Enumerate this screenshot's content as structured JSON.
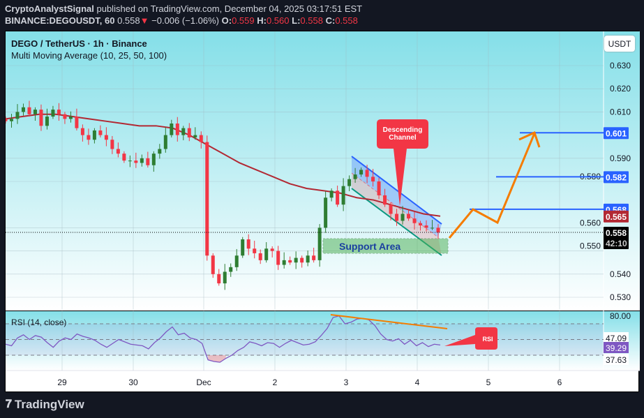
{
  "header": {
    "line1_author": "CryptoAnalystSignal",
    "line1_rest": "published on TradingView.com, December 04, 2025 03:17:51 EST",
    "symbol": "BINANCE:DEGOUSDT, 60",
    "last": "0.558",
    "change": "−0.006 (−1.06%)",
    "o_label": "O:",
    "o": "0.559",
    "h_label": "H:",
    "h": "0.560",
    "l_label": "L:",
    "l": "0.558",
    "c_label": "C:",
    "c": "0.558"
  },
  "legend": {
    "title": "DEGO / TetherUS · 1h · Binance",
    "indicator": "Multi Moving Average (10, 25, 50, 100)",
    "rsi": "RSI (14, close)"
  },
  "currency_button": "USDT",
  "brand": "TradingView",
  "colors": {
    "up": "#2e7d32",
    "down": "#f23645",
    "ma": "#b22833",
    "level": "#2962ff",
    "projection": "#f57c00",
    "rsi": "#7e57c2",
    "callout": "#f23645"
  },
  "chart_data": {
    "type": "candlestick",
    "price_ticks": [
      "0.630",
      "0.620",
      "0.610",
      "0.590",
      "0.580",
      "0.560",
      "0.550",
      "0.540",
      "0.530"
    ],
    "ylim": [
      0.527,
      0.64
    ],
    "x_ticks": [
      "29",
      "30",
      "Dec",
      "2",
      "3",
      "4",
      "5",
      "6"
    ],
    "closes": [
      0.606,
      0.607,
      0.61,
      0.612,
      0.609,
      0.611,
      0.604,
      0.608,
      0.611,
      0.609,
      0.607,
      0.608,
      0.603,
      0.6,
      0.598,
      0.602,
      0.6,
      0.598,
      0.594,
      0.592,
      0.589,
      0.589,
      0.588,
      0.59,
      0.587,
      0.592,
      0.594,
      0.6,
      0.605,
      0.6,
      0.603,
      0.599,
      0.6,
      0.597,
      0.548,
      0.54,
      0.536,
      0.541,
      0.543,
      0.548,
      0.555,
      0.551,
      0.549,
      0.546,
      0.551,
      0.55,
      0.544,
      0.546,
      0.545,
      0.547,
      0.545,
      0.548,
      0.546,
      0.56,
      0.573,
      0.576,
      0.57,
      0.578,
      0.581,
      0.583,
      0.585,
      0.582,
      0.58,
      0.574,
      0.57,
      0.566,
      0.563,
      0.566,
      0.564,
      0.562,
      0.561,
      0.56,
      0.56,
      0.558
    ],
    "ma100": [
      0.607,
      0.608,
      0.609,
      0.609,
      0.608,
      0.607,
      0.606,
      0.605,
      0.604,
      0.604,
      0.603,
      0.6,
      0.596,
      0.592,
      0.588,
      0.585,
      0.582,
      0.579,
      0.577,
      0.576,
      0.575,
      0.573,
      0.572,
      0.57,
      0.568,
      0.566,
      0.565
    ],
    "price_labels": [
      {
        "text": "0.601",
        "value": 0.601,
        "color": "#2962ff"
      },
      {
        "text": "0.582",
        "value": 0.582,
        "color": "#2962ff"
      },
      {
        "text": "0.568",
        "value": 0.568,
        "color": "#2962ff"
      },
      {
        "text": "0.565",
        "value": 0.565,
        "color": "#b22833"
      },
      {
        "text": "0.558",
        "value": 0.558,
        "color": "#000000",
        "sub": "42:10"
      }
    ],
    "levels": [
      0.601,
      0.582,
      0.568
    ],
    "annotations": {
      "channel": "Descending Channel",
      "support": "Support Area",
      "rsi_note": "RSI"
    },
    "rsi": {
      "ticks": [
        "80.00"
      ],
      "labels": [
        {
          "text": "47.09",
          "bg": "#ffffff",
          "fg": "#131722"
        },
        {
          "text": "39.29",
          "bg": "#7e57c2",
          "fg": "#ffffff"
        },
        {
          "text": "37.63",
          "bg": "#ffffff",
          "fg": "#131722"
        }
      ],
      "bands": [
        70,
        50,
        30
      ],
      "values": [
        44,
        42,
        52,
        56,
        50,
        55,
        53,
        46,
        40,
        48,
        52,
        50,
        57,
        54,
        52,
        49,
        44,
        40,
        45,
        50,
        47,
        44,
        43,
        42,
        38,
        46,
        52,
        60,
        66,
        56,
        58,
        52,
        50,
        45,
        24,
        22,
        21,
        26,
        30,
        36,
        40,
        47,
        45,
        42,
        46,
        45,
        40,
        45,
        49,
        46,
        43,
        44,
        47,
        55,
        64,
        78,
        80,
        70,
        72,
        76,
        77,
        75,
        68,
        57,
        50,
        48,
        51,
        44,
        49,
        42,
        46,
        41,
        44,
        43
      ]
    }
  }
}
